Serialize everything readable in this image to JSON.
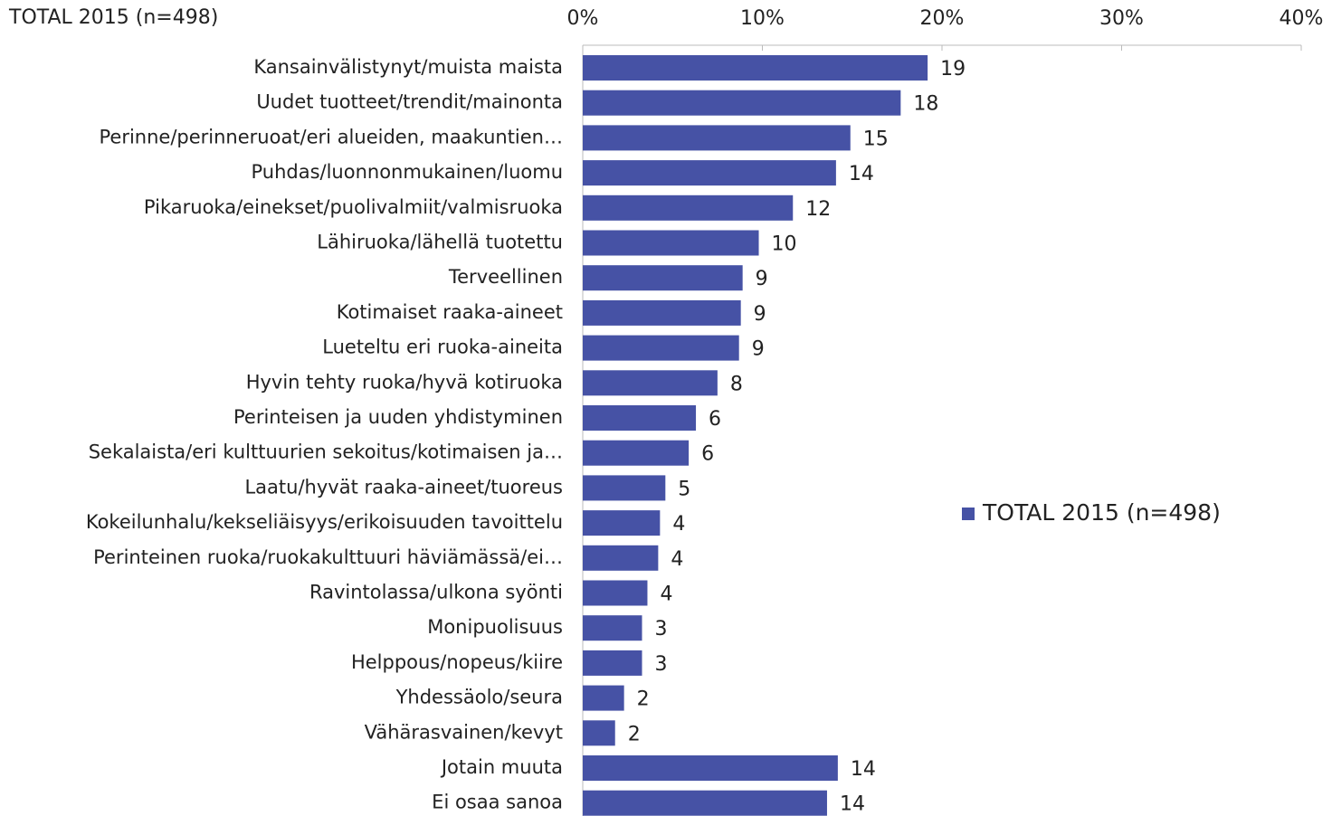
{
  "chart_data": {
    "type": "bar",
    "orientation": "horizontal",
    "title": "TOTAL 2015  (n=498)",
    "categories": [
      "Kansainvälistynyt/muista maista",
      "Uudet tuotteet/trendit/mainonta",
      "Perinne/perinneruoat/eri alueiden, maakuntien…",
      "Puhdas/luonnonmukainen/luomu",
      "Pikaruoka/einekset/puolivalmiit/valmisruoka",
      "Lähiruoka/lähellä tuotettu",
      "Terveellinen",
      "Kotimaiset raaka-aineet",
      "Lueteltu eri ruoka-aineita",
      "Hyvin tehty ruoka/hyvä kotiruoka",
      "Perinteisen ja uuden yhdistyminen",
      "Sekalaista/eri kulttuurien sekoitus/kotimaisen ja…",
      "Laatu/hyvät raaka-aineet/tuoreus",
      "Kokeilunhalu/kekseliäisyys/erikoisuuden tavoittelu",
      "Perinteinen ruoka/ruokakulttuuri häviämässä/ei…",
      "Ravintolassa/ulkona syönti",
      "Monipuolisuus",
      "Helppous/nopeus/kiire",
      "Yhdessäolo/seura",
      "Vähärasvainen/kevyt",
      "Jotain muuta",
      "Ei osaa sanoa"
    ],
    "series": [
      {
        "name": "TOTAL 2015 (n=498)",
        "color": "#4652a5",
        "values": [
          19.2,
          17.7,
          14.9,
          14.1,
          11.7,
          9.8,
          8.9,
          8.8,
          8.7,
          7.5,
          6.3,
          5.9,
          4.6,
          4.3,
          4.2,
          3.6,
          3.3,
          3.3,
          2.3,
          1.8,
          14.2,
          13.6
        ],
        "value_labels": [
          "19",
          "18",
          "15",
          "14",
          "12",
          "10",
          "9",
          "9",
          "9",
          "8",
          "6",
          "6",
          "5",
          "4",
          "4",
          "4",
          "3",
          "3",
          "2",
          "2",
          "14",
          "14"
        ]
      }
    ],
    "xlim": [
      0,
      40
    ],
    "xticks": [
      {
        "value": 0,
        "label": "0%"
      },
      {
        "value": 10,
        "label": "10%"
      },
      {
        "value": 20,
        "label": "20%"
      },
      {
        "value": 30,
        "label": "30%"
      },
      {
        "value": 40,
        "label": "40%"
      }
    ],
    "legend": "right"
  }
}
